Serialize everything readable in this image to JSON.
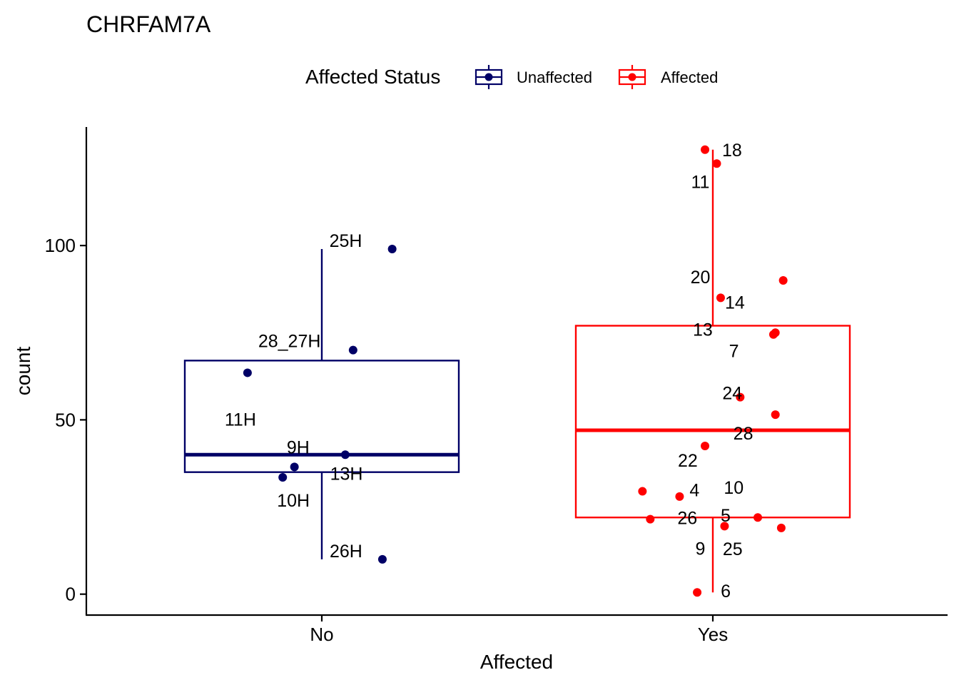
{
  "chart_data": {
    "type": "box",
    "title": "CHRFAM7A",
    "xlabel": "Affected",
    "ylabel": "count",
    "categories": [
      "No",
      "Yes"
    ],
    "yticks": [
      0,
      50,
      100
    ],
    "ylim": [
      -6,
      134
    ],
    "grid": false,
    "legend": {
      "title": "Affected Status",
      "position": "top",
      "entries": [
        {
          "label": "Unaffected",
          "color": "#000066"
        },
        {
          "label": "Affected",
          "color": "#FF0000"
        }
      ]
    },
    "series": [
      {
        "name": "Unaffected",
        "category": "No",
        "color": "#000066",
        "box": {
          "q1": 35,
          "median": 40,
          "q3": 67,
          "whisker_low": 10,
          "whisker_high": 99
        },
        "points": [
          {
            "label": "25H",
            "x": 0.18,
            "y": 99
          },
          {
            "label": "28_27H",
            "x": 0.08,
            "y": 70
          },
          {
            "label": "11H",
            "x": -0.19,
            "y": 63.5
          },
          {
            "label": "9H",
            "x": 0.06,
            "y": 40
          },
          {
            "label": "13H",
            "x": -0.07,
            "y": 36.5
          },
          {
            "label": "10H",
            "x": -0.1,
            "y": 33.5
          },
          {
            "label": "26H",
            "x": 0.155,
            "y": 10
          }
        ]
      },
      {
        "name": "Affected",
        "category": "Yes",
        "color": "#FF0000",
        "box": {
          "q1": 22,
          "median": 47,
          "q3": 77,
          "whisker_low": 0.5,
          "whisker_high": 127.5
        },
        "points": [
          {
            "label": "18",
            "x": -0.02,
            "y": 127.5
          },
          {
            "label": "11",
            "x": 0.01,
            "y": 123.5
          },
          {
            "label": "20",
            "x": 0.18,
            "y": 90
          },
          {
            "label": "14",
            "x": 0.02,
            "y": 85
          },
          {
            "label": "13",
            "x": 0.155,
            "y": 74.5
          },
          {
            "label": "7",
            "x": 0.16,
            "y": 75
          },
          {
            "label": "24",
            "x": 0.07,
            "y": 56.5
          },
          {
            "label": "28",
            "x": 0.16,
            "y": 51.5
          },
          {
            "label": "22",
            "x": -0.02,
            "y": 42.5
          },
          {
            "label": "4",
            "x": -0.18,
            "y": 29.5
          },
          {
            "label": "10",
            "x": -0.085,
            "y": 28
          },
          {
            "label": "26",
            "x": -0.16,
            "y": 21.5
          },
          {
            "label": "5",
            "x": 0.115,
            "y": 22
          },
          {
            "label": "9",
            "x": 0.03,
            "y": 19.5
          },
          {
            "label": "25",
            "x": 0.175,
            "y": 19
          },
          {
            "label": "6",
            "x": -0.04,
            "y": 0.5
          }
        ]
      }
    ]
  }
}
